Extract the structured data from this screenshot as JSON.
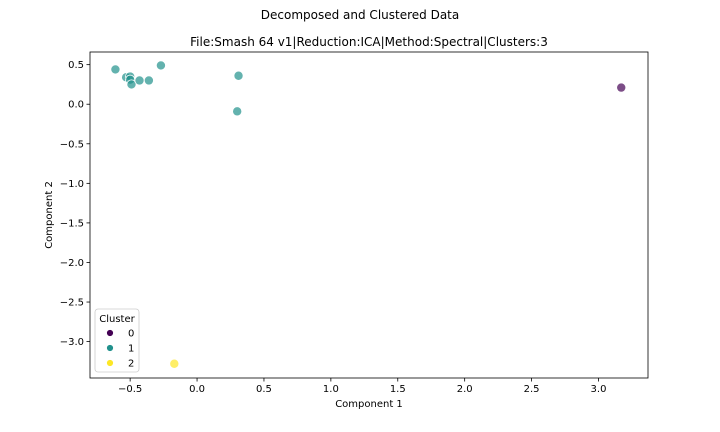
{
  "chart_data": {
    "type": "scatter",
    "suptitle": "Decomposed and Clustered Data",
    "title": "File:Smash 64 v1|Reduction:ICA|Method:Spectral|Clusters:3",
    "xlabel": "Component 1",
    "ylabel": "Component 2",
    "xlim": [
      -0.8,
      3.37
    ],
    "ylim": [
      -3.46,
      0.66
    ],
    "xticks": [
      -0.5,
      0.0,
      0.5,
      1.0,
      1.5,
      2.0,
      2.5,
      3.0
    ],
    "xtick_labels": [
      "−0.5",
      "0.0",
      "0.5",
      "1.0",
      "1.5",
      "2.0",
      "2.5",
      "3.0"
    ],
    "yticks": [
      0.5,
      0.0,
      -0.5,
      -1.0,
      -1.5,
      -2.0,
      -2.5,
      -3.0
    ],
    "ytick_labels": [
      "0.5",
      "0.0",
      "−0.5",
      "−1.0",
      "−1.5",
      "−2.0",
      "−2.5",
      "−3.0"
    ],
    "grid": false,
    "legend": {
      "title": "Cluster",
      "placement": "lower-left",
      "entries": [
        {
          "label": "0",
          "color": "#440154"
        },
        {
          "label": "1",
          "color": "#21918c"
        },
        {
          "label": "2",
          "color": "#fde725"
        }
      ]
    },
    "series": [
      {
        "name": "0",
        "color": "#440154",
        "points": [
          [
            3.17,
            0.21
          ]
        ]
      },
      {
        "name": "1",
        "color": "#21918c",
        "points": [
          [
            -0.61,
            0.44
          ],
          [
            -0.53,
            0.34
          ],
          [
            -0.5,
            0.35
          ],
          [
            -0.5,
            0.31
          ],
          [
            -0.49,
            0.25
          ],
          [
            -0.43,
            0.3
          ],
          [
            -0.36,
            0.3
          ],
          [
            -0.27,
            0.49
          ],
          [
            0.31,
            0.36
          ],
          [
            0.3,
            -0.09
          ]
        ]
      },
      {
        "name": "2",
        "color": "#fde725",
        "points": [
          [
            -0.17,
            -3.28
          ]
        ]
      }
    ]
  }
}
